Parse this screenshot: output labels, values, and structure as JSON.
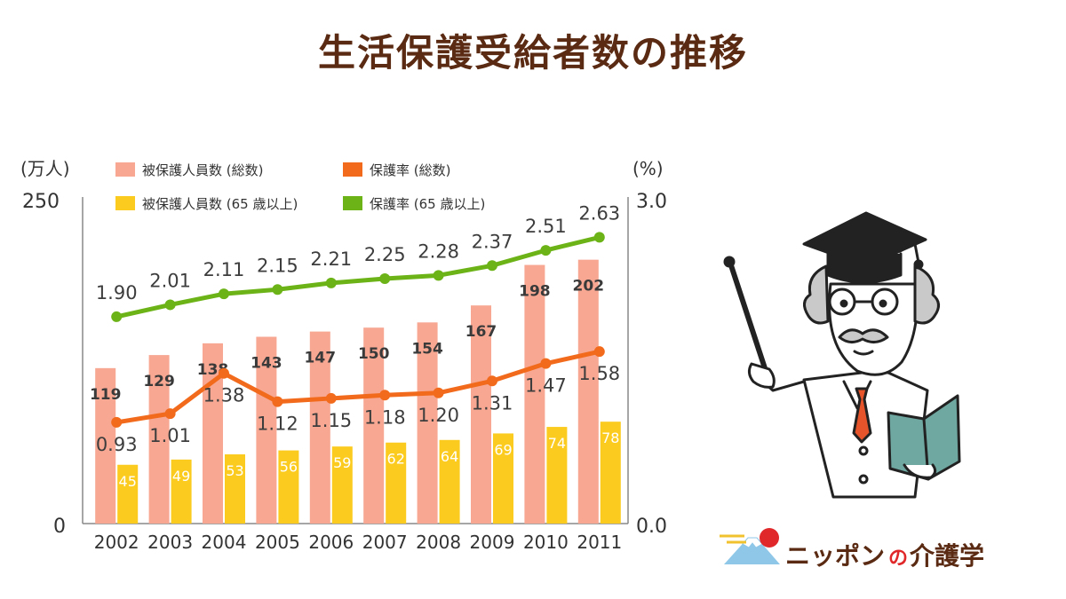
{
  "page": {
    "title": "生活保護受給者数の推移"
  },
  "brand": {
    "part1": "ニッポン",
    "part2": "の",
    "part3": "介護学"
  },
  "illustration": {
    "icon": "professor-with-pointer-and-book"
  },
  "chart_data": {
    "type": "bar",
    "categories": [
      "2002",
      "2003",
      "2004",
      "2005",
      "2006",
      "2007",
      "2008",
      "2009",
      "2010",
      "2011"
    ],
    "left_axis": {
      "unit": "(万人)",
      "ylim": [
        0,
        250
      ],
      "ticks": [
        "0",
        "250"
      ]
    },
    "right_axis": {
      "unit": "(%)",
      "ylim": [
        0.0,
        3.0
      ],
      "ticks": [
        "0.0",
        "3.0"
      ]
    },
    "series": [
      {
        "name": "被保護人員数 (総数)",
        "kind": "bar",
        "axis": "left",
        "color": "#f7a792",
        "values": [
          119,
          129,
          138,
          143,
          147,
          150,
          154,
          167,
          198,
          202
        ]
      },
      {
        "name": "被保護人員数 (65 歳以上)",
        "kind": "bar",
        "axis": "left",
        "color": "#fbcb1f",
        "values": [
          45,
          49,
          53,
          56,
          59,
          62,
          64,
          69,
          74,
          78
        ]
      },
      {
        "name": "保護率 (総数)",
        "kind": "line",
        "axis": "right",
        "color": "#f26a1b",
        "values": [
          0.93,
          1.01,
          1.38,
          1.12,
          1.15,
          1.18,
          1.2,
          1.31,
          1.47,
          1.58
        ]
      },
      {
        "name": "保護率 (65 歳以上)",
        "kind": "line",
        "axis": "right",
        "color": "#6cb318",
        "values": [
          1.9,
          2.01,
          2.11,
          2.15,
          2.21,
          2.25,
          2.28,
          2.37,
          2.51,
          2.63
        ]
      }
    ],
    "legend_position": "top",
    "grid": false
  },
  "colors": {
    "title": "#5a2a12",
    "axis": "#888888"
  }
}
